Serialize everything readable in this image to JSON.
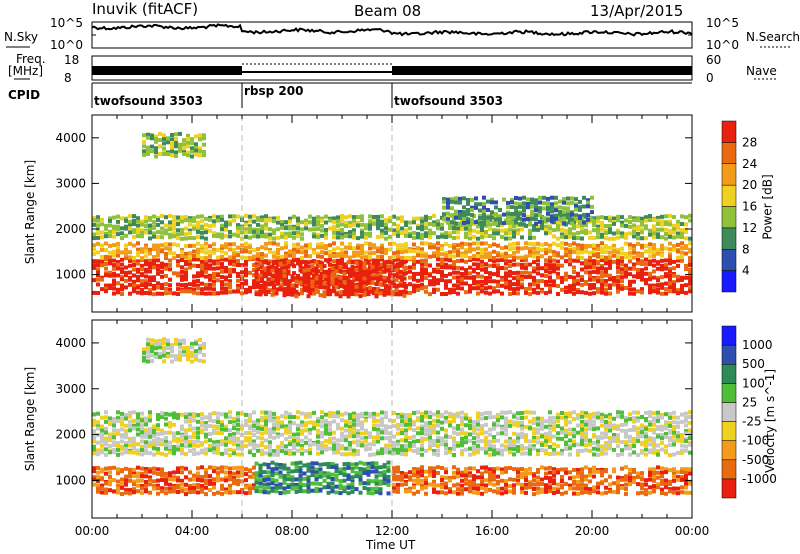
{
  "header": {
    "station": "Inuvik (fitACF)",
    "beam": "Beam 08",
    "date": "13/Apr/2015"
  },
  "top_panels": {
    "nsky_label": "N.Sky",
    "nsky_ticks": [
      "10^5",
      "10^0"
    ],
    "nsearch_label": "N.Search",
    "nsearch_ticks": [
      "10^5",
      "10^0"
    ],
    "freq_label_line1": "Freq.",
    "freq_label_line2": "[MHz]",
    "freq_ticks": [
      "18",
      "8"
    ],
    "nave_label": "Nave",
    "nave_ticks": [
      "60",
      "0"
    ],
    "cpid_label": "CPID",
    "cpid_segments": [
      {
        "name": "twofsound 3503",
        "start_h": 0,
        "end_h": 6
      },
      {
        "name": "rbsp 200",
        "start_h": 6,
        "end_h": 12
      },
      {
        "name": "twofsound 3503",
        "start_h": 12,
        "end_h": 24
      }
    ]
  },
  "time_axis": {
    "label": "Time UT",
    "ticks": [
      "00:00",
      "04:00",
      "08:00",
      "12:00",
      "16:00",
      "20:00",
      "00:00"
    ]
  },
  "colors": {
    "power": [
      "#1a1aff",
      "#2f4fb0",
      "#3f8a5a",
      "#8fc23a",
      "#f0d020",
      "#f39c1a",
      "#ea6a12",
      "#e8200d"
    ],
    "velocity": [
      "#e8200d",
      "#ea6a12",
      "#f39c1a",
      "#f0d020",
      "#c8c8c8",
      "#4fbf3a",
      "#2f8a5a",
      "#2f4fb0",
      "#1a1aff"
    ]
  },
  "chart_data": [
    {
      "type": "heatmap",
      "name": "power",
      "ylabel": "Slant Range [km]",
      "yticks": [
        "1000",
        "2000",
        "3000",
        "4000"
      ],
      "ylim": [
        180,
        4500
      ],
      "xlim": [
        0,
        24
      ],
      "colorbar_label": "Power [dB]",
      "colorbar_ticks": [
        "4",
        "8",
        "12",
        "16",
        "20",
        "24",
        "28"
      ],
      "bands": [
        {
          "start_h": 0.0,
          "end_h": 24,
          "range_km": [
            600,
            1350
          ],
          "level": 7
        },
        {
          "start_h": 0.0,
          "end_h": 24,
          "range_km": [
            1350,
            1700
          ],
          "level": 5
        },
        {
          "start_h": 0.0,
          "end_h": 24,
          "range_km": [
            1750,
            2300
          ],
          "level": 3
        },
        {
          "start_h": 2.0,
          "end_h": 4.5,
          "range_km": [
            3600,
            4100
          ],
          "level": 3
        },
        {
          "start_h": 6.5,
          "end_h": 12.5,
          "range_km": [
            500,
            1300
          ],
          "level": 7
        },
        {
          "start_h": 14.0,
          "end_h": 20.0,
          "range_km": [
            2100,
            2700
          ],
          "level": 2
        }
      ]
    },
    {
      "type": "heatmap",
      "name": "velocity",
      "ylabel": "Slant Range [km]",
      "yticks": [
        "1000",
        "2000",
        "3000",
        "4000"
      ],
      "ylim": [
        180,
        4500
      ],
      "xlim": [
        0,
        24
      ],
      "colorbar_label": "Velocity [m s^-1]",
      "colorbar_ticks": [
        "1000",
        "500",
        "100",
        "25",
        "-25",
        "-100",
        "-500",
        "-1000"
      ],
      "bands": [
        {
          "start_h": 0.0,
          "end_h": 6.5,
          "range_km": [
            700,
            1300
          ],
          "level": 1
        },
        {
          "start_h": 6.5,
          "end_h": 12.0,
          "range_km": [
            700,
            1400
          ],
          "level": 6
        },
        {
          "start_h": 12.0,
          "end_h": 24,
          "range_km": [
            700,
            1300
          ],
          "level": 1
        },
        {
          "start_h": 0.0,
          "end_h": 24,
          "range_km": [
            1500,
            2500
          ],
          "level": 4
        },
        {
          "start_h": 2.0,
          "end_h": 4.5,
          "range_km": [
            3600,
            4100
          ],
          "level": 4
        }
      ]
    }
  ]
}
